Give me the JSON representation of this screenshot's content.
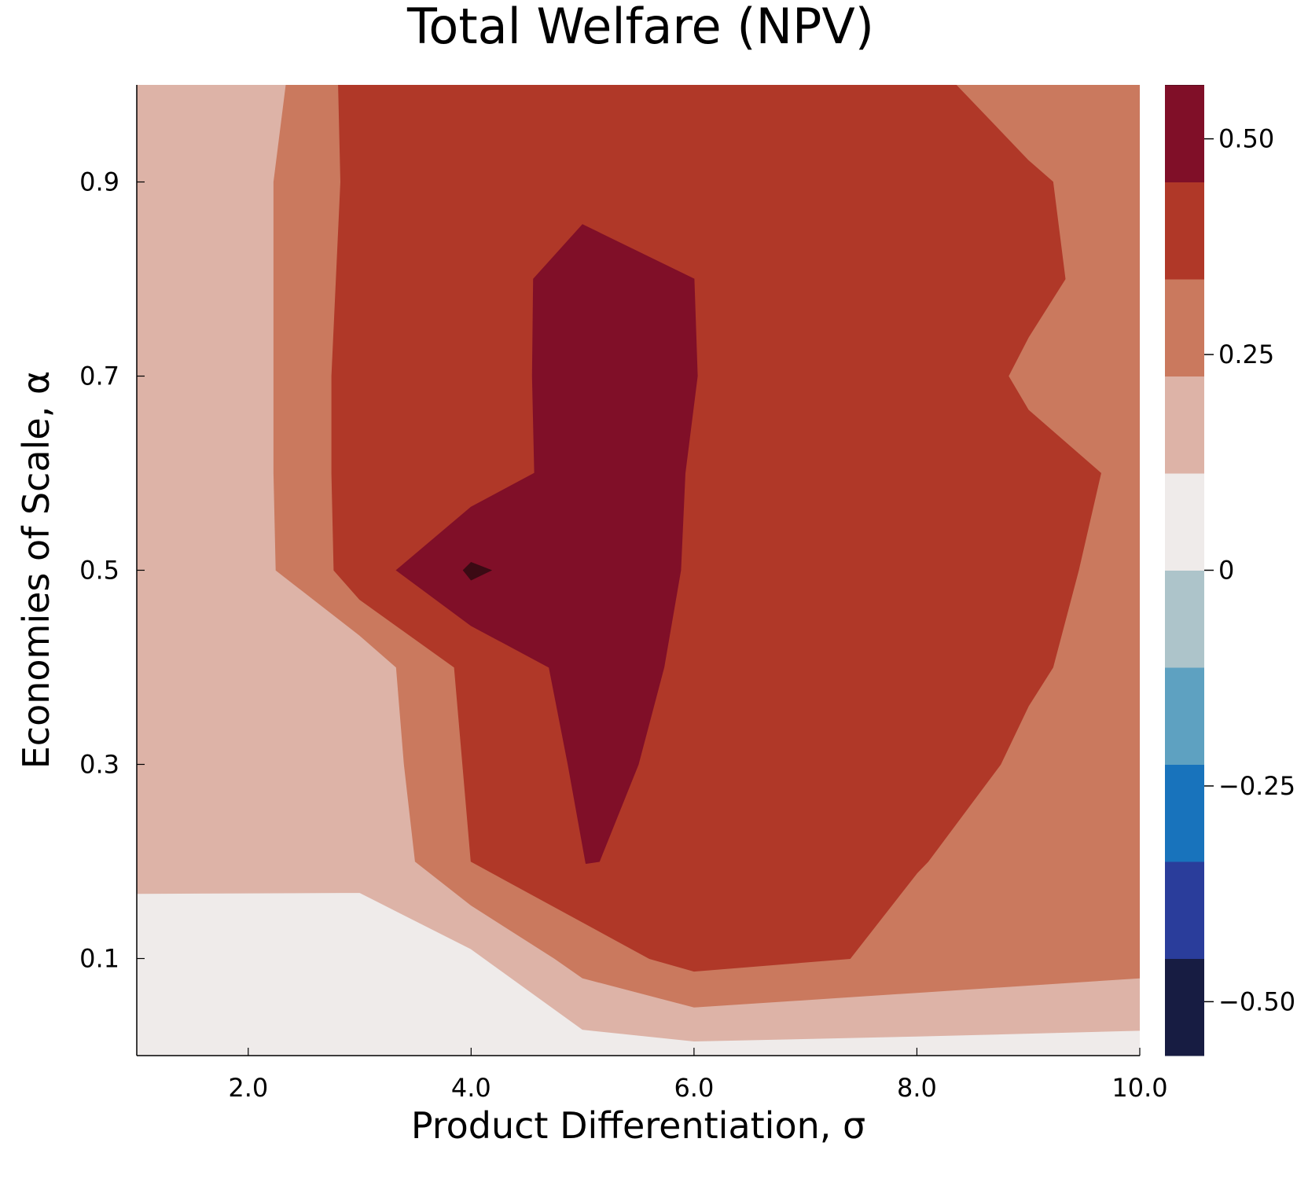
{
  "chart_data": {
    "type": "contour",
    "title": "Total Welfare (NPV)",
    "xlabel": "Product Differentiation, σ",
    "ylabel": "Economies of Scale, α",
    "xlim": [
      1.0,
      10.0
    ],
    "ylim": [
      0.0,
      1.0
    ],
    "x_ticks": [
      2.0,
      4.0,
      6.0,
      8.0,
      10.0
    ],
    "x_tick_labels": [
      "2.0",
      "4.0",
      "6.0",
      "8.0",
      "10.0"
    ],
    "y_ticks": [
      0.1,
      0.3,
      0.5,
      0.7,
      0.9
    ],
    "y_tick_labels": [
      "0.1",
      "0.3",
      "0.5",
      "0.7",
      "0.9"
    ],
    "grid": false,
    "colorbar": {
      "range": [
        -0.5625,
        0.5625
      ],
      "ticks": [
        -0.5,
        -0.25,
        0,
        0.25,
        0.5
      ],
      "tick_labels": [
        "−0.50",
        "−0.25",
        "0",
        "0.25",
        "0.50"
      ],
      "levels": [
        {
          "from": -0.5625,
          "to": -0.45,
          "color": "#171c42"
        },
        {
          "from": -0.45,
          "to": -0.3375,
          "color": "#2a3d9b"
        },
        {
          "from": -0.3375,
          "to": -0.225,
          "color": "#1873bc"
        },
        {
          "from": -0.225,
          "to": -0.1125,
          "color": "#5ea1c1"
        },
        {
          "from": -0.1125,
          "to": 0.0,
          "color": "#adc4ca"
        },
        {
          "from": 0.0,
          "to": 0.1125,
          "color": "#efebea"
        },
        {
          "from": 0.1125,
          "to": 0.225,
          "color": "#ddb3a7"
        },
        {
          "from": 0.225,
          "to": 0.3375,
          "color": "#ca795e"
        },
        {
          "from": 0.3375,
          "to": 0.45,
          "color": "#b03828"
        },
        {
          "from": 0.45,
          "to": 0.5625,
          "color": "#800f28"
        },
        {
          "from": 0.5625,
          "to": 0.675,
          "color": "#3b0a14"
        }
      ]
    },
    "regions": [
      {
        "level": 0.05625,
        "color": "#efebea",
        "points": [
          [
            1.0,
            0.0
          ],
          [
            10.0,
            0.0
          ],
          [
            10.0,
            1.0
          ],
          [
            1.0,
            1.0
          ]
        ]
      },
      {
        "level": 0.16875,
        "color": "#ddb3a7",
        "points": [
          [
            1.0,
            0.167
          ],
          [
            3.0,
            0.168
          ],
          [
            4.0,
            0.11
          ],
          [
            5.0,
            0.027
          ],
          [
            6.0,
            0.015
          ],
          [
            8.0,
            0.02
          ],
          [
            10.0,
            0.026
          ],
          [
            10.0,
            1.0
          ],
          [
            1.0,
            1.0
          ]
        ]
      },
      {
        "level": 0.28125,
        "color": "#ca795e",
        "points": [
          [
            2.34,
            1.0
          ],
          [
            2.23,
            0.9
          ],
          [
            2.23,
            0.6
          ],
          [
            2.25,
            0.5
          ],
          [
            3.0,
            0.433
          ],
          [
            3.33,
            0.4
          ],
          [
            3.4,
            0.3
          ],
          [
            3.5,
            0.2
          ],
          [
            4.0,
            0.155
          ],
          [
            4.75,
            0.1
          ],
          [
            5.0,
            0.08
          ],
          [
            6.0,
            0.05
          ],
          [
            8.0,
            0.065
          ],
          [
            10.0,
            0.08
          ],
          [
            10.0,
            1.0
          ]
        ]
      },
      {
        "level": 0.39375,
        "color": "#b03828",
        "points": [
          [
            2.81,
            1.0
          ],
          [
            2.83,
            0.9
          ],
          [
            2.75,
            0.7
          ],
          [
            2.75,
            0.6
          ],
          [
            2.77,
            0.5
          ],
          [
            3.0,
            0.47
          ],
          [
            3.85,
            0.4
          ],
          [
            4.0,
            0.2
          ],
          [
            5.6,
            0.1
          ],
          [
            6.0,
            0.087
          ],
          [
            7.4,
            0.1
          ],
          [
            8.0,
            0.188
          ],
          [
            8.1,
            0.2
          ],
          [
            8.75,
            0.3
          ],
          [
            9.0,
            0.36
          ],
          [
            9.22,
            0.4
          ],
          [
            9.45,
            0.5
          ],
          [
            9.65,
            0.6
          ],
          [
            9.0,
            0.665
          ],
          [
            8.82,
            0.7
          ],
          [
            9.0,
            0.74
          ],
          [
            9.33,
            0.8
          ],
          [
            9.22,
            0.9
          ],
          [
            9.0,
            0.922
          ],
          [
            8.35,
            1.0
          ]
        ]
      },
      {
        "level": 0.50625,
        "color": "#800f28",
        "points": [
          [
            5.0,
            0.856
          ],
          [
            6.0,
            0.8
          ],
          [
            6.03,
            0.7
          ],
          [
            5.92,
            0.6
          ],
          [
            5.88,
            0.5
          ],
          [
            5.73,
            0.4
          ],
          [
            5.5,
            0.3
          ],
          [
            5.15,
            0.2
          ],
          [
            5.03,
            0.198
          ],
          [
            4.87,
            0.3
          ],
          [
            4.7,
            0.4
          ],
          [
            4.0,
            0.443
          ],
          [
            3.33,
            0.5
          ],
          [
            4.0,
            0.565
          ],
          [
            4.57,
            0.6
          ],
          [
            4.55,
            0.7
          ],
          [
            4.56,
            0.8
          ]
        ]
      },
      {
        "level": 0.61875,
        "color": "#3b0a14",
        "points": [
          [
            3.93,
            0.5
          ],
          [
            4.0,
            0.508
          ],
          [
            4.18,
            0.5
          ],
          [
            4.0,
            0.49
          ]
        ]
      }
    ]
  }
}
